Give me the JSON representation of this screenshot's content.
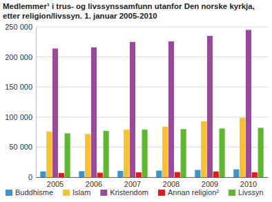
{
  "chart_data": {
    "type": "bar",
    "title": "Medlemmer¹ i trus- og livssynssamfunn utanfor Den norske kyrkja, etter religion/livssyn. 1. januar 2005-2010",
    "categories": [
      "2005",
      "2006",
      "2007",
      "2008",
      "2009",
      "2010"
    ],
    "series": [
      {
        "name": "Buddhisme",
        "color": "#3a94c9",
        "values": [
          9500,
          10000,
          10500,
          11000,
          12000,
          13000
        ]
      },
      {
        "name": "Islam",
        "color": "#f6c230",
        "values": [
          76000,
          72000,
          79000,
          84000,
          93000,
          99000
        ]
      },
      {
        "name": "Kristendom",
        "color": "#9b4a9b",
        "values": [
          214000,
          216000,
          225000,
          226000,
          235000,
          245000
        ]
      },
      {
        "name": "Annan religion²",
        "color": "#e31a1c",
        "values": [
          7000,
          7500,
          8000,
          8500,
          9500,
          8000
        ]
      },
      {
        "name": "Livssyn",
        "color": "#5cb82e",
        "values": [
          73000,
          77000,
          79000,
          80000,
          81000,
          82000
        ]
      }
    ],
    "ylim": [
      0,
      250000
    ],
    "yticks": [
      0,
      {
        "value": 50000,
        "label": "50 000"
      },
      {
        "value": 100000,
        "label": "100 000"
      },
      {
        "value": 150000,
        "label": "150 000"
      },
      {
        "value": 200000,
        "label": "200 000"
      },
      {
        "value": 250000,
        "label": "250 000"
      }
    ],
    "grid": true,
    "legend": "bottom"
  }
}
